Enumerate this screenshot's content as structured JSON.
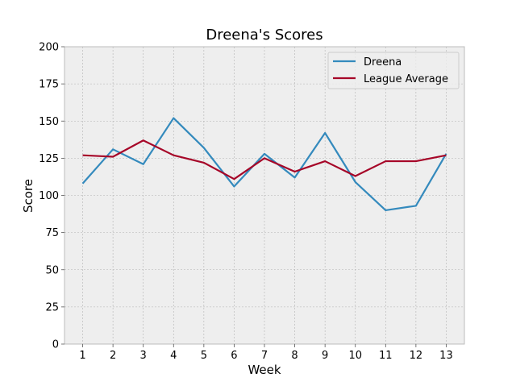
{
  "chart_data": {
    "type": "line",
    "title": "Dreena's Scores",
    "xlabel": "Week",
    "ylabel": "Score",
    "x": [
      1,
      2,
      3,
      4,
      5,
      6,
      7,
      8,
      9,
      10,
      11,
      12,
      13
    ],
    "xlim": [
      0.4,
      13.6
    ],
    "ylim": [
      0,
      200
    ],
    "yticks": [
      0,
      25,
      50,
      75,
      100,
      125,
      150,
      175,
      200
    ],
    "grid": true,
    "legend_position": "top-right",
    "series": [
      {
        "name": "Dreena",
        "color": "#348abd",
        "values": [
          108,
          131,
          121,
          152,
          132,
          106,
          128,
          112,
          142,
          109,
          90,
          93,
          128
        ]
      },
      {
        "name": "League Average",
        "color": "#a60628",
        "values": [
          127,
          126,
          137,
          127,
          122,
          111,
          125,
          116,
          123,
          113,
          123,
          123,
          127
        ]
      }
    ]
  }
}
